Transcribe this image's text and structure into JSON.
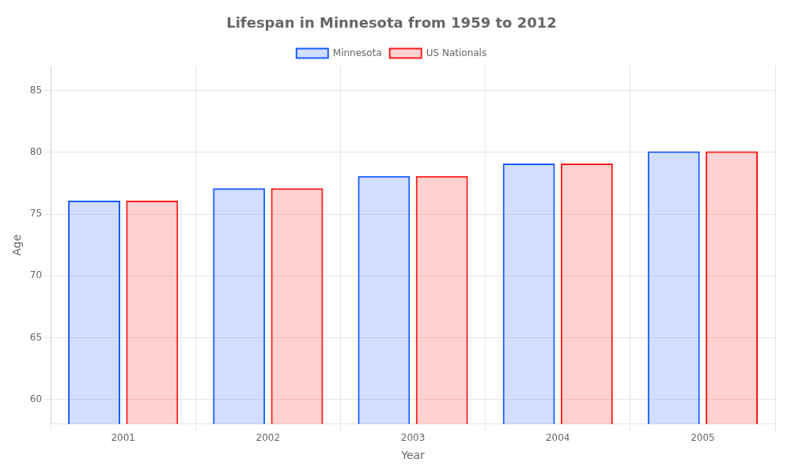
{
  "chart_data": {
    "type": "bar",
    "title": "Lifespan in Minnesota from 1959 to 2012",
    "x_label": "Year",
    "y_label": "Age",
    "categories": [
      "2001",
      "2002",
      "2003",
      "2004",
      "2005"
    ],
    "series": [
      {
        "name": "Minnesota",
        "color": "#1a5aff",
        "values": [
          76.1,
          77.1,
          78.1,
          79.1,
          80.1
        ]
      },
      {
        "name": "US Nationals",
        "color": "#ff1a1a",
        "values": [
          76.1,
          77.1,
          78.1,
          79.1,
          80.1
        ]
      }
    ],
    "ylim": [
      58,
      87
    ],
    "yticks": [
      60,
      65,
      70,
      75,
      80,
      85
    ],
    "grid": true,
    "legend": "top"
  }
}
